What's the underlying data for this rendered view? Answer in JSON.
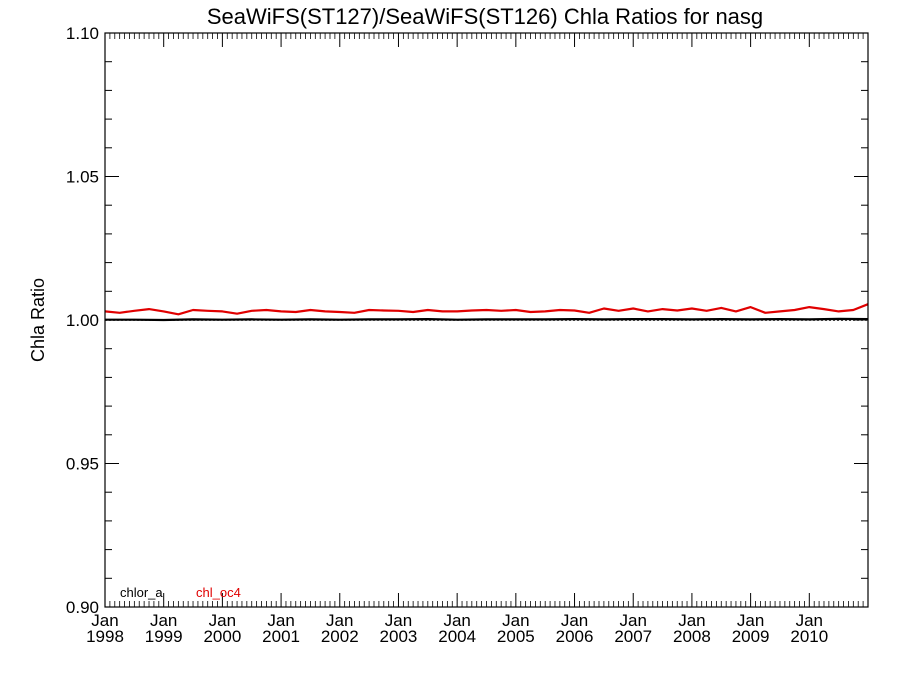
{
  "chart_data": {
    "type": "line",
    "title": "SeaWiFS(ST127)/SeaWiFS(ST126)  Chla Ratios for nasg",
    "ylabel": "Chla Ratio",
    "xlabel": "",
    "xlim": [
      1998.0,
      2011.0
    ],
    "ylim": [
      0.9,
      1.1
    ],
    "y_ticks": [
      "0.90",
      "0.95",
      "1.00",
      "1.05",
      "1.10"
    ],
    "x_ticks": [
      {
        "month": "Jan",
        "year": "1998",
        "x": 1998
      },
      {
        "month": "Jan",
        "year": "1999",
        "x": 1999
      },
      {
        "month": "Jan",
        "year": "2000",
        "x": 2000
      },
      {
        "month": "Jan",
        "year": "2001",
        "x": 2001
      },
      {
        "month": "Jan",
        "year": "2002",
        "x": 2002
      },
      {
        "month": "Jan",
        "year": "2003",
        "x": 2003
      },
      {
        "month": "Jan",
        "year": "2004",
        "x": 2004
      },
      {
        "month": "Jan",
        "year": "2005",
        "x": 2005
      },
      {
        "month": "Jan",
        "year": "2006",
        "x": 2006
      },
      {
        "month": "Jan",
        "year": "2007",
        "x": 2007
      },
      {
        "month": "Jan",
        "year": "2008",
        "x": 2008
      },
      {
        "month": "Jan",
        "year": "2009",
        "x": 2009
      },
      {
        "month": "Jan",
        "year": "2010",
        "x": 2010
      }
    ],
    "reference_line": 1.0,
    "grid": "dotted reference lines at 0.95, 1.00, 1.05",
    "legend_position": "bottom-left",
    "series": [
      {
        "name": "chlor_a",
        "color": "#000000",
        "x": [
          1998.0,
          1998.5,
          1999.0,
          1999.5,
          2000.0,
          2000.5,
          2001.0,
          2001.5,
          2002.0,
          2002.5,
          2003.0,
          2003.5,
          2004.0,
          2004.5,
          2005.0,
          2005.5,
          2006.0,
          2006.5,
          2007.0,
          2007.5,
          2008.0,
          2008.5,
          2009.0,
          2009.5,
          2010.0,
          2010.5,
          2011.0
        ],
        "y": [
          1.0001,
          1.0001,
          1.0,
          1.0002,
          1.0001,
          1.0002,
          1.0001,
          1.0002,
          1.0001,
          1.0002,
          1.0002,
          1.0003,
          1.0001,
          1.0002,
          1.0002,
          1.0002,
          1.0003,
          1.0002,
          1.0003,
          1.0003,
          1.0002,
          1.0003,
          1.0002,
          1.0003,
          1.0002,
          1.0004,
          1.0003
        ]
      },
      {
        "name": "chl_oc4",
        "color": "#e00000",
        "x": [
          1998.0,
          1998.25,
          1998.5,
          1998.75,
          1999.0,
          1999.25,
          1999.5,
          1999.75,
          2000.0,
          2000.25,
          2000.5,
          2000.75,
          2001.0,
          2001.25,
          2001.5,
          2001.75,
          2002.0,
          2002.25,
          2002.5,
          2002.75,
          2003.0,
          2003.25,
          2003.5,
          2003.75,
          2004.0,
          2004.25,
          2004.5,
          2004.75,
          2005.0,
          2005.25,
          2005.5,
          2005.75,
          2006.0,
          2006.25,
          2006.5,
          2006.75,
          2007.0,
          2007.25,
          2007.5,
          2007.75,
          2008.0,
          2008.25,
          2008.5,
          2008.75,
          2009.0,
          2009.25,
          2009.5,
          2009.75,
          2010.0,
          2010.25,
          2010.5,
          2010.75,
          2011.0
        ],
        "y": [
          1.003,
          1.0025,
          1.0032,
          1.0038,
          1.003,
          1.002,
          1.0035,
          1.0032,
          1.003,
          1.0022,
          1.0032,
          1.0035,
          1.003,
          1.0028,
          1.0035,
          1.003,
          1.0028,
          1.0025,
          1.0035,
          1.0033,
          1.0032,
          1.0028,
          1.0035,
          1.003,
          1.003,
          1.0033,
          1.0035,
          1.0032,
          1.0035,
          1.0028,
          1.003,
          1.0035,
          1.0033,
          1.0025,
          1.004,
          1.0032,
          1.004,
          1.003,
          1.0038,
          1.0033,
          1.004,
          1.0032,
          1.0042,
          1.003,
          1.0045,
          1.0025,
          1.003,
          1.0035,
          1.0045,
          1.0038,
          1.003,
          1.0035,
          1.0055
        ]
      }
    ]
  }
}
